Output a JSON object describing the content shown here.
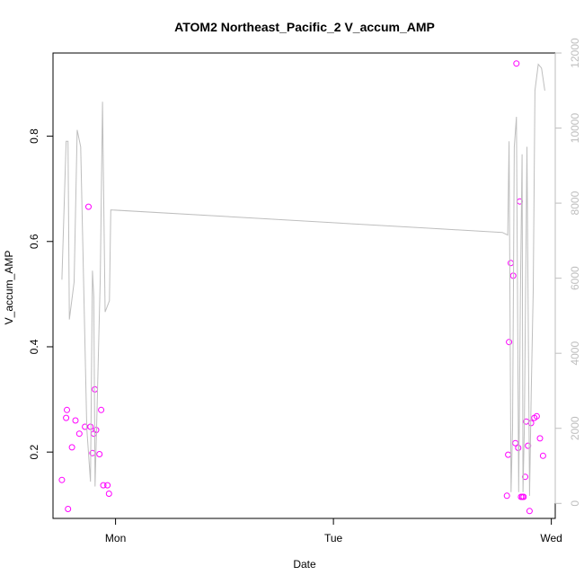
{
  "chart_data": {
    "type": "scatter",
    "title": "ATOM2 Northeast_Pacific_2 V_accum_AMP",
    "xlabel": "Date",
    "ylabel": "V_accum_AMP",
    "x_unit": "days",
    "x_ticks": [
      {
        "value": 1,
        "label": "Mon"
      },
      {
        "value": 2,
        "label": "Tue"
      },
      {
        "value": 3,
        "label": "Wed"
      }
    ],
    "xlim": [
      0.713,
      3.018
    ],
    "y_left": {
      "ticks": [
        0.2,
        0.4,
        0.6,
        0.8
      ],
      "lim": [
        0.074,
        0.958
      ]
    },
    "y_right": {
      "ticks": [
        0,
        2000,
        4000,
        6000,
        8000,
        10000,
        12000
      ],
      "lim": [
        -400,
        12000
      ]
    },
    "grid": false,
    "legend": "none",
    "colors": {
      "points": "#ff00ff",
      "line": "#bebebe",
      "right_axis": "#bebebe",
      "frame": "#000000"
    },
    "series": [
      {
        "axis": "left",
        "mode": "markers",
        "points": [
          [
            0.754,
            0.147
          ],
          [
            0.773,
            0.265
          ],
          [
            0.777,
            0.28
          ],
          [
            0.782,
            0.092
          ],
          [
            0.8,
            0.209
          ],
          [
            0.816,
            0.26
          ],
          [
            0.834,
            0.235
          ],
          [
            0.86,
            0.248
          ],
          [
            0.876,
            0.666
          ],
          [
            0.885,
            0.248
          ],
          [
            0.894,
            0.198
          ],
          [
            0.9,
            0.235
          ],
          [
            0.905,
            0.319
          ],
          [
            0.911,
            0.242
          ],
          [
            0.926,
            0.196
          ],
          [
            0.934,
            0.28
          ],
          [
            0.944,
            0.137
          ],
          [
            0.963,
            0.137
          ],
          [
            0.97,
            0.121
          ],
          [
            2.796,
            0.117
          ],
          [
            2.802,
            0.195
          ],
          [
            2.806,
            0.409
          ],
          [
            2.814,
            0.559
          ],
          [
            2.825,
            0.535
          ],
          [
            2.835,
            0.217
          ],
          [
            2.84,
            0.938
          ],
          [
            2.848,
            0.208
          ],
          [
            2.855,
            0.676
          ],
          [
            2.861,
            0.115
          ],
          [
            2.867,
            0.115
          ],
          [
            2.873,
            0.115
          ],
          [
            2.88,
            0.153
          ],
          [
            2.885,
            0.258
          ],
          [
            2.893,
            0.212
          ],
          [
            2.9,
            0.088
          ],
          [
            2.907,
            0.255
          ],
          [
            2.922,
            0.265
          ],
          [
            2.933,
            0.268
          ],
          [
            2.948,
            0.226
          ],
          [
            2.962,
            0.193
          ]
        ]
      },
      {
        "axis": "right",
        "mode": "line",
        "points": [
          [
            0.754,
            5960
          ],
          [
            0.773,
            9650
          ],
          [
            0.782,
            9650
          ],
          [
            0.788,
            4900
          ],
          [
            0.81,
            5900
          ],
          [
            0.824,
            9950
          ],
          [
            0.84,
            9500
          ],
          [
            0.868,
            2000
          ],
          [
            0.885,
            580
          ],
          [
            0.894,
            6200
          ],
          [
            0.9,
            5500
          ],
          [
            0.906,
            450
          ],
          [
            0.913,
            2000
          ],
          [
            0.93,
            6000
          ],
          [
            0.94,
            10700
          ],
          [
            0.952,
            5100
          ],
          [
            0.972,
            5400
          ],
          [
            0.978,
            7820
          ],
          [
            2.775,
            7220
          ],
          [
            2.8,
            7150
          ],
          [
            2.806,
            9650
          ],
          [
            2.815,
            300
          ],
          [
            2.822,
            2000
          ],
          [
            2.83,
            9500
          ],
          [
            2.84,
            10300
          ],
          [
            2.85,
            300
          ],
          [
            2.858,
            5500
          ],
          [
            2.866,
            9300
          ],
          [
            2.87,
            300
          ],
          [
            2.876,
            2000
          ],
          [
            2.888,
            9500
          ],
          [
            2.9,
            200
          ],
          [
            2.908,
            3000
          ],
          [
            2.917,
            5700
          ],
          [
            2.925,
            11000
          ],
          [
            2.94,
            11700
          ],
          [
            2.955,
            11600
          ],
          [
            2.97,
            11000
          ]
        ]
      }
    ]
  }
}
